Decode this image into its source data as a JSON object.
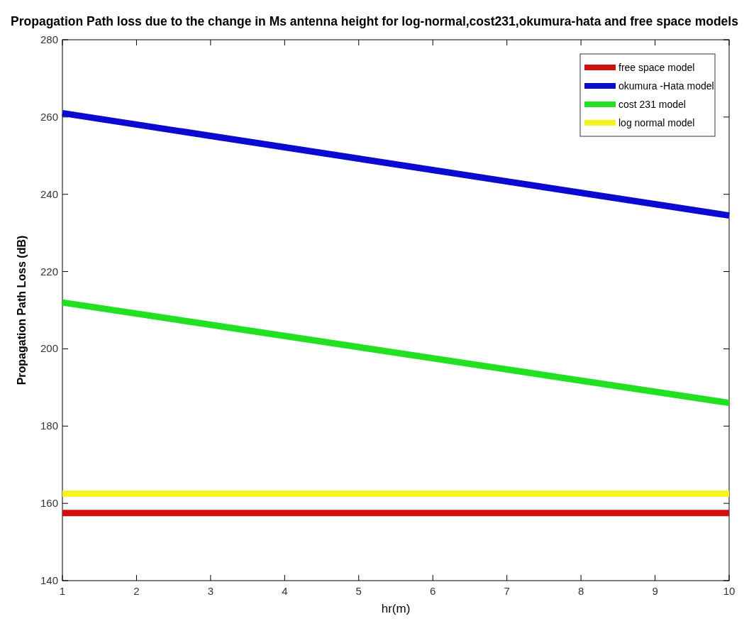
{
  "chart_data": {
    "type": "line",
    "title": "Propagation Path loss due to the change in Ms antenna height for log-normal,cost231,okumura-hata and free space models",
    "xlabel": "hr(m)",
    "ylabel": "Propagation Path Loss (dB)",
    "x": [
      1,
      10
    ],
    "xlim": [
      1,
      10
    ],
    "xticks": [
      1,
      2,
      3,
      4,
      5,
      6,
      7,
      8,
      9,
      10
    ],
    "ylim": [
      140,
      280
    ],
    "yticks": [
      140,
      160,
      180,
      200,
      220,
      240,
      260,
      280
    ],
    "legend": "top right",
    "grid": false,
    "marker": "none",
    "line_style": "solid",
    "series": [
      {
        "name": "free space model",
        "color": "#d01010",
        "values": [
          157.5,
          157.5
        ]
      },
      {
        "name": "okumura -Hata model",
        "color": "#0a0ad0",
        "values": [
          261,
          234.5
        ]
      },
      {
        "name": "cost 231 model",
        "color": "#22e022",
        "values": [
          212,
          186
        ]
      },
      {
        "name": "log normal model",
        "color": "#f4f420",
        "values": [
          162.5,
          162.5
        ]
      }
    ]
  }
}
